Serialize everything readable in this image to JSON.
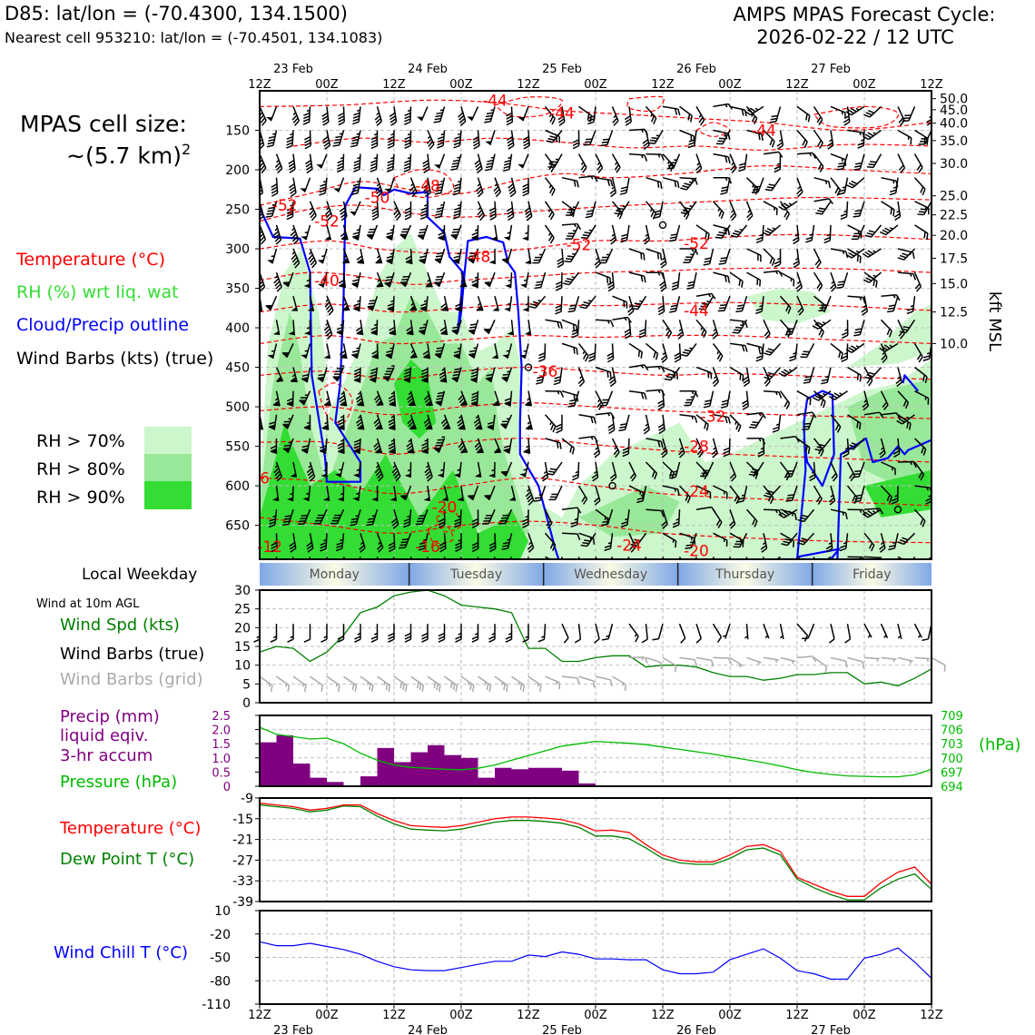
{
  "header": {
    "station": "D85: lat/lon = (-70.4300, 134.1500)",
    "nearest_cell": "Nearest cell 953210: lat/lon = (-70.4501, 134.1083)",
    "cycle_title": "AMPS MPAS Forecast Cycle:",
    "cycle_date": "2026-02-22 / 12 UTC"
  },
  "legend_upper": {
    "cell_size_title": "MPAS cell size:",
    "cell_size_value": "~(5.7 km)",
    "cell_size_exp": "2",
    "temperature": "Temperature (°C)",
    "rh": "RH (%) wrt liq. wat",
    "cloud": "Cloud/Precip outline",
    "wind": "Wind Barbs (kts) (true)",
    "rh_70": "RH > 70%",
    "rh_80": "RH > 80%",
    "rh_90": "RH > 90%"
  },
  "legend_lower": {
    "weekday_label": "Local Weekday",
    "wind_note": "Wind at 10m AGL",
    "wind_spd": "Wind Spd (kts)",
    "wind_barbs_true": "Wind Barbs (true)",
    "wind_barbs_grid": "Wind Barbs (grid)",
    "precip_1": "Precip (mm)",
    "precip_2": "liquid eqiv.",
    "precip_3": "3-hr accum",
    "pressure": "Pressure (hPa)",
    "hpa_unit": "(hPa)",
    "temp": "Temperature (°C)",
    "dewpoint": "Dew Point T (°C)",
    "windchill": "Wind Chill T (°C)"
  },
  "colors": {
    "temperature": "#ff0000",
    "rh_text": "#33dd33",
    "cloud": "#0000ff",
    "rh70": "#ccf7cc",
    "rh80": "#99e899",
    "rh90": "#33dd33",
    "wind_spd": "#008000",
    "precip": "#800080",
    "pressure": "#00bb00",
    "dewpoint": "#008000",
    "windchill": "#0000ff",
    "grid_barb": "#aaaaaa"
  },
  "time_axis": {
    "ticks": [
      "12Z",
      "00Z",
      "12Z",
      "00Z",
      "12Z",
      "00Z",
      "12Z",
      "00Z",
      "12Z",
      "00Z",
      "12Z"
    ],
    "dates": [
      "23 Feb",
      "24 Feb",
      "25 Feb",
      "26 Feb",
      "27 Feb"
    ],
    "weekdays": [
      "Monday",
      "Tuesday",
      "Wednesday",
      "Thursday",
      "Friday"
    ]
  },
  "chart_data": [
    {
      "type": "heatmap",
      "name": "time-height cross section",
      "y_left_ticks": [
        "150",
        "200",
        "250",
        "300",
        "350",
        "400",
        "450",
        "500",
        "550",
        "600",
        "650"
      ],
      "y_left_values": [
        150,
        200,
        250,
        300,
        350,
        400,
        450,
        500,
        550,
        600,
        650
      ],
      "y_right_ticks": [
        "50.0",
        "45.0",
        "40.0",
        "35.0",
        "30.0",
        "25.0",
        "22.5",
        "20.0",
        "17.5",
        "15.0",
        "12.5",
        "10.0"
      ],
      "y_right_pressure": [
        110,
        124,
        141,
        163,
        192,
        233,
        257,
        283,
        312,
        344,
        380,
        420
      ],
      "ylabel_right": "kft MSL",
      "ylim": [
        100,
        693
      ],
      "temperature_labels": [
        {
          "text": "-44",
          "t": 14,
          "p": 112
        },
        {
          "text": "-44",
          "t": 18,
          "p": 128
        },
        {
          "text": "-44",
          "t": 30,
          "p": 150
        },
        {
          "text": "-48",
          "t": 10,
          "p": 220
        },
        {
          "text": "-50",
          "t": 7,
          "p": 235
        },
        {
          "text": "-52",
          "t": 1.5,
          "p": 245
        },
        {
          "text": "-52",
          "t": 4,
          "p": 265
        },
        {
          "text": "-48",
          "t": 13,
          "p": 310
        },
        {
          "text": "-52",
          "t": 19,
          "p": 295
        },
        {
          "text": "-52",
          "t": 26,
          "p": 293
        },
        {
          "text": "-40",
          "t": 4,
          "p": 340
        },
        {
          "text": "-44",
          "t": 26,
          "p": 378
        },
        {
          "text": "-36",
          "t": 17,
          "p": 455
        },
        {
          "text": "-32",
          "t": 27,
          "p": 512
        },
        {
          "text": "-28",
          "t": 26,
          "p": 550
        },
        {
          "text": "-24",
          "t": 26,
          "p": 607
        },
        {
          "text": "-20",
          "t": 11,
          "p": 627
        },
        {
          "text": "-24",
          "t": 22,
          "p": 675
        },
        {
          "text": "-16",
          "t": 10,
          "p": 677
        },
        {
          "text": "-12",
          "t": 0.6,
          "p": 677
        },
        {
          "text": "-20",
          "t": 26,
          "p": 682
        },
        {
          "text": "6",
          "t": 0.3,
          "p": 590
        }
      ]
    },
    {
      "type": "line",
      "name": "10m wind speed",
      "ylim": [
        0,
        30
      ],
      "y_ticks": [
        "0",
        "5",
        "10",
        "15",
        "20",
        "25",
        "30"
      ],
      "x": [
        0,
        1,
        2,
        3,
        4,
        5,
        6,
        7,
        8,
        9,
        10,
        11,
        12,
        13,
        14,
        15,
        16,
        17,
        18,
        19,
        20,
        21,
        22,
        23,
        24,
        25,
        26,
        27,
        28,
        29,
        30,
        31,
        32,
        33,
        34,
        35,
        36,
        37,
        38,
        39,
        40
      ],
      "series": [
        {
          "values": [
            13.5,
            15,
            14.5,
            11,
            13.5,
            18,
            24,
            25.5,
            28.5,
            29.5,
            30,
            28.5,
            26,
            25.5,
            25,
            24,
            14.5,
            14.5,
            11,
            11,
            12,
            12.5,
            12.5,
            9.5,
            10,
            10,
            9.5,
            8,
            7,
            7,
            6,
            6.5,
            7.5,
            7.5,
            8,
            8,
            5,
            5.5,
            4.5,
            6.5,
            9
          ]
        }
      ]
    },
    {
      "type": "bar",
      "name": "3-hr precip",
      "ylim": [
        0,
        2.5
      ],
      "y_ticks": [
        "0",
        "0.5",
        "1.0",
        "1.5",
        "2.0",
        "2.5"
      ],
      "x": [
        0,
        1,
        2,
        3,
        4,
        5,
        6,
        7,
        8,
        9,
        10,
        11,
        12,
        13,
        14,
        15,
        16,
        17,
        18,
        19
      ],
      "values": [
        1.55,
        1.8,
        0.8,
        0.3,
        0.15,
        0,
        0.35,
        1.35,
        0.85,
        1.2,
        1.45,
        1.1,
        1.0,
        0.3,
        0.65,
        0.6,
        0.65,
        0.65,
        0.55,
        0.1
      ]
    },
    {
      "type": "line",
      "name": "pressure",
      "ylim": [
        694,
        709
      ],
      "y_ticks": [
        "694",
        "697",
        "700",
        "703",
        "706",
        "709"
      ],
      "x": [
        0,
        1,
        2,
        3,
        4,
        5,
        6,
        7,
        8,
        9,
        10,
        11,
        12,
        13,
        14,
        15,
        16,
        17,
        18,
        19,
        20,
        21,
        22,
        23,
        24,
        25,
        26,
        27,
        28,
        29,
        30,
        31,
        32,
        33,
        34,
        35,
        36,
        37,
        38,
        39,
        40
      ],
      "values": [
        706.5,
        705,
        704.5,
        704,
        704.2,
        703,
        701,
        699.5,
        698.5,
        698,
        697.8,
        697.6,
        697.5,
        697.8,
        698.5,
        699.5,
        700.5,
        701.5,
        702.5,
        703,
        703.5,
        703.3,
        703.1,
        702.8,
        702.3,
        701.8,
        701.3,
        700.8,
        700.2,
        699.6,
        699,
        698.3,
        697.5,
        696.9,
        696.5,
        696.2,
        696.1,
        696,
        696,
        696.4,
        697.6
      ]
    },
    {
      "type": "line",
      "name": "temperature and dew point",
      "ylim": [
        -39,
        -9
      ],
      "y_ticks": [
        "-9",
        "-15",
        "-21",
        "-27",
        "-33",
        "-39"
      ],
      "x": [
        0,
        1,
        2,
        3,
        4,
        5,
        6,
        7,
        8,
        9,
        10,
        11,
        12,
        13,
        14,
        15,
        16,
        17,
        18,
        19,
        20,
        21,
        22,
        23,
        24,
        25,
        26,
        27,
        28,
        29,
        30,
        31,
        32,
        33,
        34,
        35,
        36,
        37,
        38,
        39,
        40
      ],
      "series": [
        {
          "name": "Temperature (°C)",
          "values": [
            -10.5,
            -11,
            -11.5,
            -12.5,
            -12,
            -11,
            -11,
            -13.5,
            -15.5,
            -17,
            -17.3,
            -17.5,
            -17,
            -16,
            -15,
            -14.5,
            -14.5,
            -14.8,
            -15.3,
            -16.5,
            -18.5,
            -18.3,
            -19,
            -22.5,
            -25.5,
            -27,
            -27.5,
            -27.5,
            -25.5,
            -23,
            -22.5,
            -24.5,
            -32,
            -34,
            -36,
            -37.5,
            -37.5,
            -33.5,
            -30.5,
            -29,
            -34
          ]
        },
        {
          "name": "Dew Point T (°C)",
          "values": [
            -11,
            -11.5,
            -12,
            -13,
            -12.5,
            -11.3,
            -11.5,
            -14.3,
            -16.5,
            -18,
            -18.3,
            -18.5,
            -18,
            -17,
            -16,
            -15.5,
            -15.5,
            -15.8,
            -16.3,
            -17.5,
            -20,
            -20,
            -20.8,
            -23.5,
            -26.5,
            -27.8,
            -28.2,
            -28.2,
            -26.5,
            -24,
            -23.5,
            -25.5,
            -32.5,
            -35,
            -37,
            -38.5,
            -38.5,
            -35,
            -32.5,
            -31,
            -35.5
          ]
        }
      ]
    },
    {
      "type": "line",
      "name": "wind chill",
      "ylim": [
        -110,
        10
      ],
      "y_ticks": [
        "10",
        "-20",
        "-50",
        "-80",
        "-110"
      ],
      "x": [
        0,
        1,
        2,
        3,
        4,
        5,
        6,
        7,
        8,
        9,
        10,
        11,
        12,
        13,
        14,
        15,
        16,
        17,
        18,
        19,
        20,
        21,
        22,
        23,
        24,
        25,
        26,
        27,
        28,
        29,
        30,
        31,
        32,
        33,
        34,
        35,
        36,
        37,
        38,
        39,
        40
      ],
      "series": [
        {
          "values": [
            -30,
            -35,
            -35,
            -32,
            -36,
            -40,
            -46,
            -55,
            -62,
            -66,
            -67,
            -67,
            -63,
            -59,
            -55,
            -55,
            -47,
            -49,
            -43,
            -46,
            -52,
            -52,
            -53,
            -53,
            -66,
            -71,
            -71,
            -69,
            -53,
            -46,
            -39,
            -51,
            -67,
            -71,
            -78,
            -78,
            -51,
            -46,
            -38,
            -56,
            -77
          ]
        }
      ]
    }
  ]
}
